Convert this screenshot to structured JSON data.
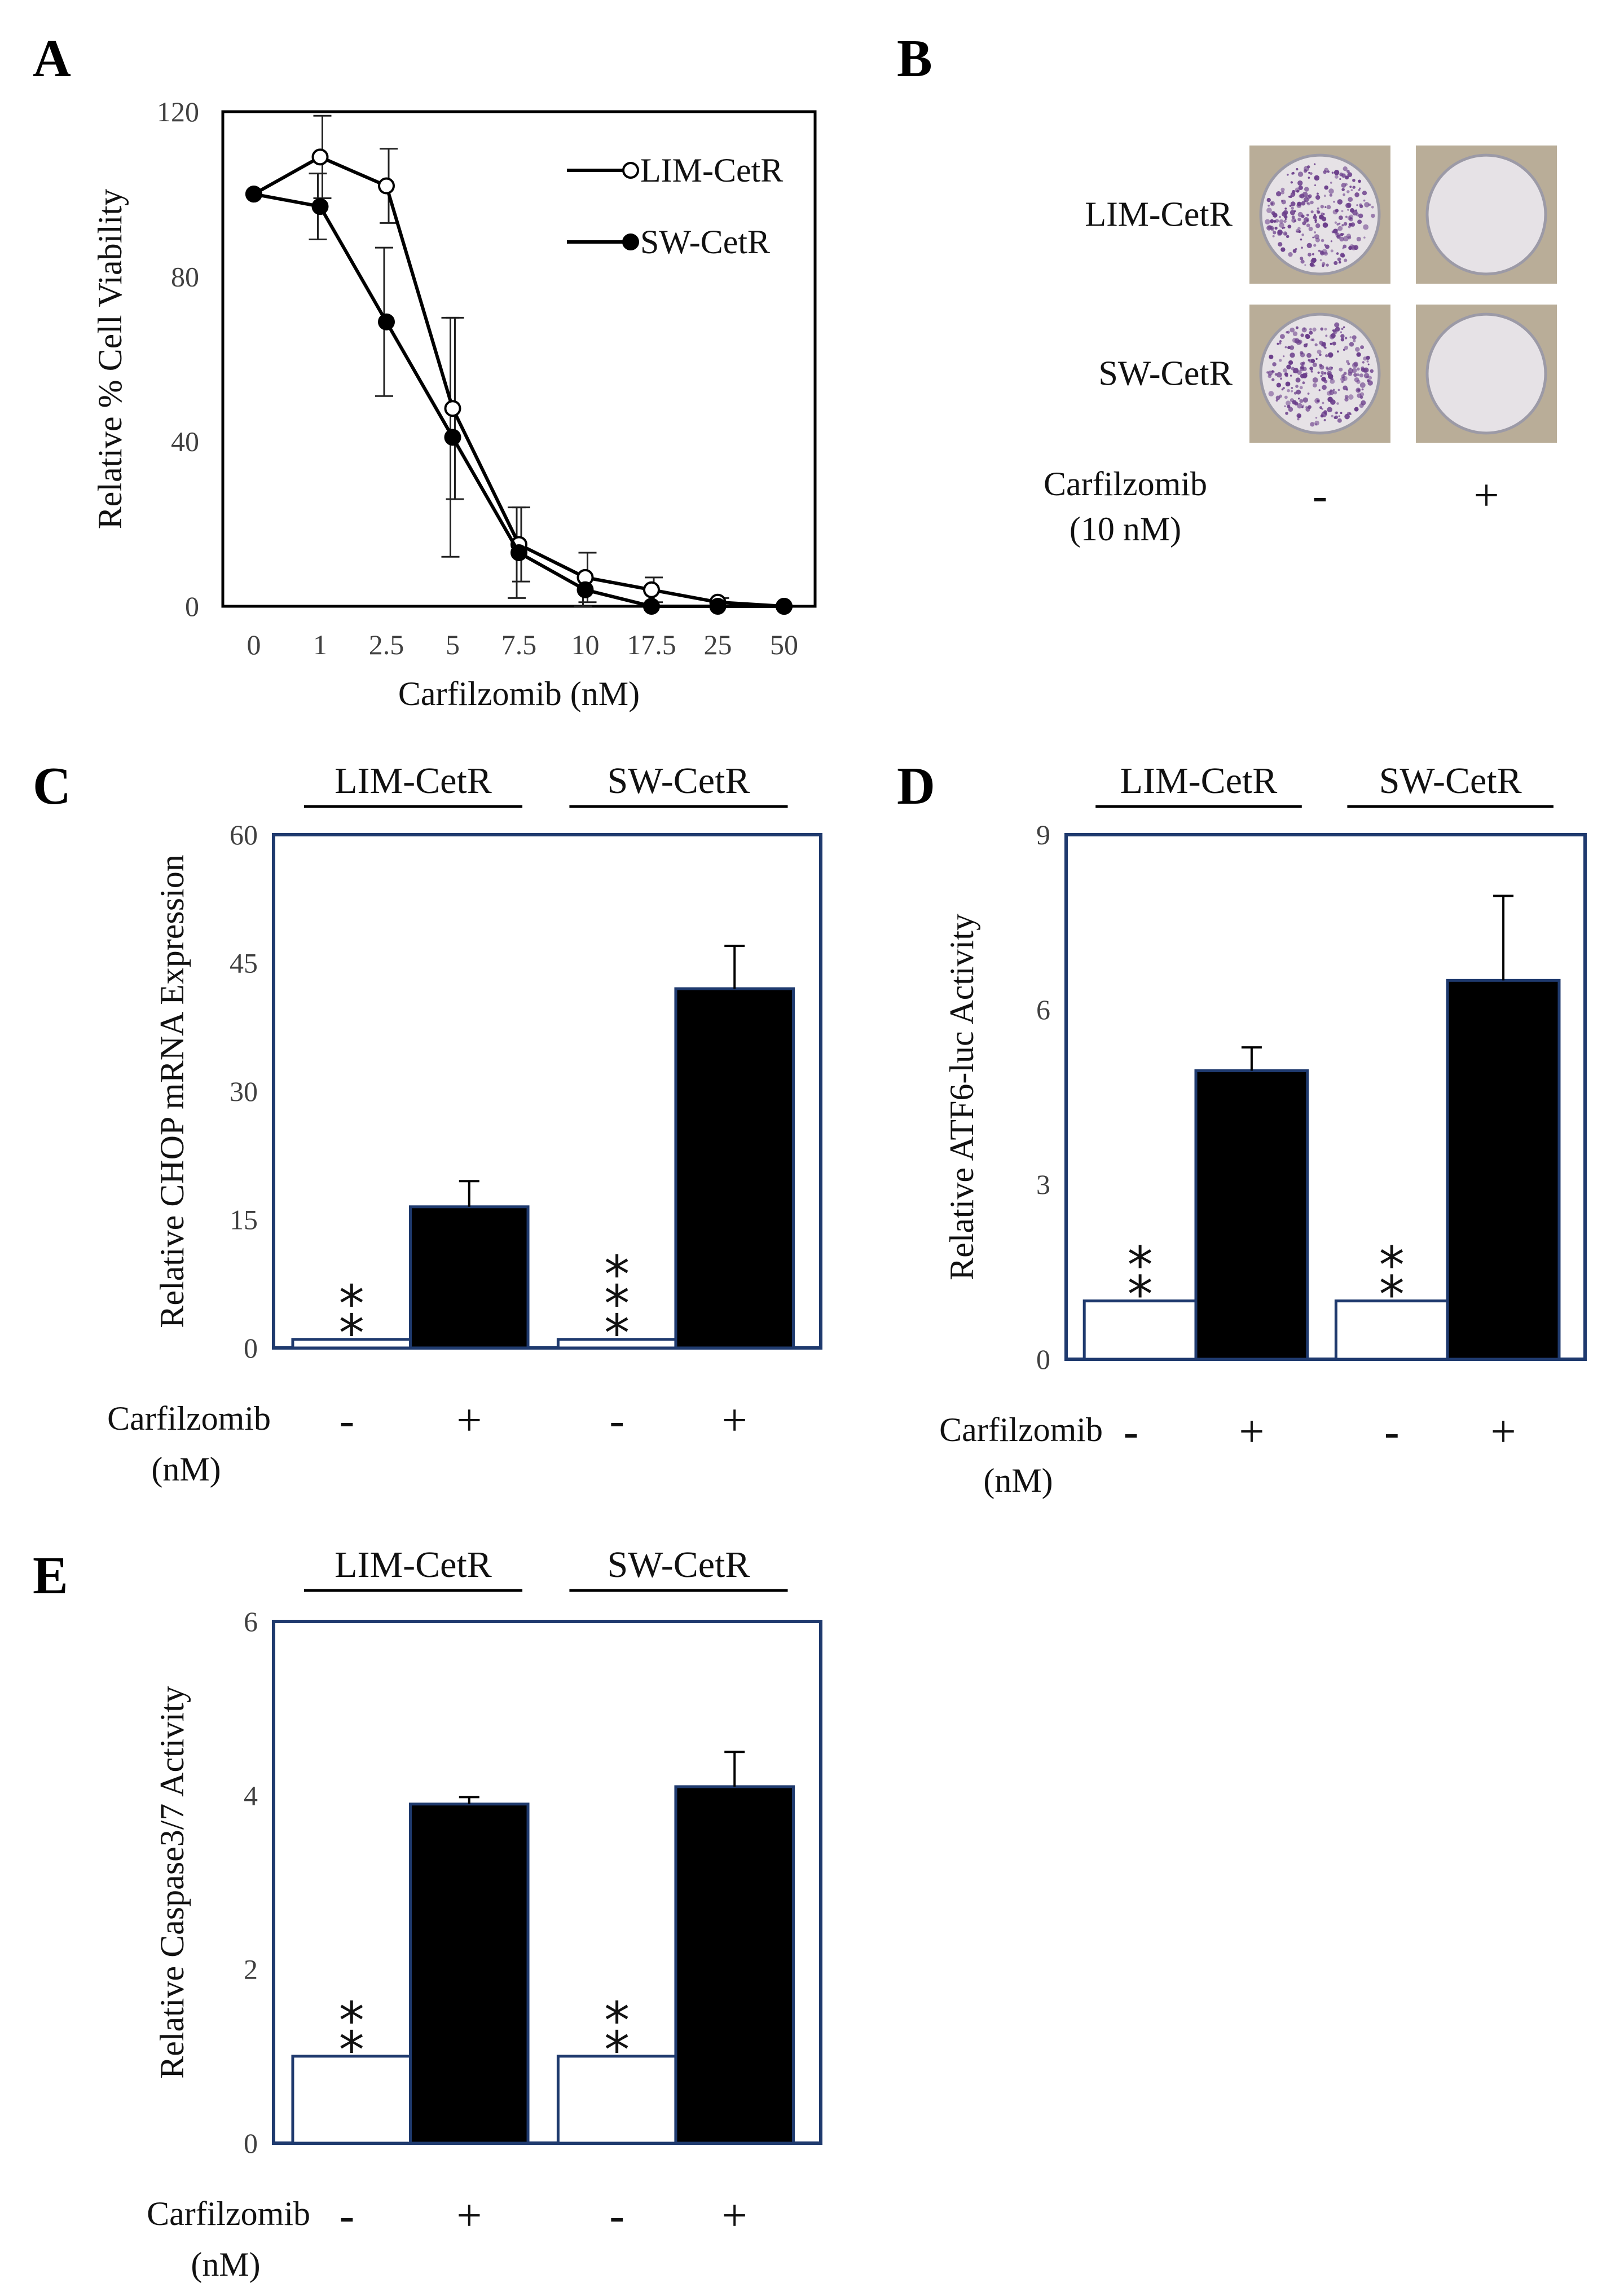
{
  "panels": {
    "A": {
      "letter": "A"
    },
    "B": {
      "letter": "B"
    },
    "C": {
      "letter": "C"
    },
    "D": {
      "letter": "D"
    },
    "E": {
      "letter": "E"
    }
  },
  "chart_data": [
    {
      "panel": "A",
      "type": "line",
      "title": "",
      "xlabel": "Carfilzomib (nM)",
      "ylabel": "Relative % Cell Viability",
      "categories": [
        "0",
        "1",
        "2.5",
        "5",
        "7.5",
        "10",
        "17.5",
        "25",
        "50"
      ],
      "ylim": [
        0,
        120
      ],
      "yticks": [
        "0",
        "40",
        "80",
        "120"
      ],
      "legend_position": "top-right",
      "series": [
        {
          "name": "LIM-CetR",
          "marker": "open-circle",
          "values": [
            100,
            109,
            102,
            48,
            15,
            7,
            4,
            1,
            0
          ],
          "errors": [
            0,
            10,
            9,
            22,
            9,
            6,
            3,
            1,
            0
          ]
        },
        {
          "name": "SW-CetR",
          "marker": "filled-circle",
          "values": [
            100,
            97,
            69,
            41,
            13,
            4,
            0,
            0,
            0
          ],
          "errors": [
            0,
            8,
            18,
            29,
            11,
            4,
            0,
            0,
            0
          ]
        }
      ]
    },
    {
      "panel": "C",
      "type": "bar",
      "ylabel": "Relative  CHOP mRNA Expression",
      "ylim": [
        0,
        60
      ],
      "yticks": [
        "0",
        "15",
        "30",
        "45",
        "60"
      ],
      "groups": [
        "LIM-CetR",
        "SW-CetR"
      ],
      "treatment_label": "Carfilzomib",
      "treatment_unit": "(nM)",
      "treatment_markers": [
        "-",
        "+",
        "-",
        "+"
      ],
      "bars": [
        {
          "group": "LIM-CetR",
          "treatment": "-",
          "value": 1,
          "error": 0,
          "fill": "#ffffff",
          "stars": "**"
        },
        {
          "group": "LIM-CetR",
          "treatment": "+",
          "value": 16.5,
          "error": 3,
          "fill": "#000000",
          "stars": ""
        },
        {
          "group": "SW-CetR",
          "treatment": "-",
          "value": 1,
          "error": 0,
          "fill": "#ffffff",
          "stars": "***"
        },
        {
          "group": "SW-CetR",
          "treatment": "+",
          "value": 42,
          "error": 5,
          "fill": "#000000",
          "stars": ""
        }
      ]
    },
    {
      "panel": "D",
      "type": "bar",
      "ylabel": "Relative  ATF6-luc Activity",
      "ylim": [
        0,
        9
      ],
      "yticks": [
        "0",
        "3",
        "6",
        "9"
      ],
      "groups": [
        "LIM-CetR",
        "SW-CetR"
      ],
      "treatment_label": "Carfilzomib",
      "treatment_unit": "(nM)",
      "treatment_markers": [
        "-",
        "+",
        "-",
        "+"
      ],
      "bars": [
        {
          "group": "LIM-CetR",
          "treatment": "-",
          "value": 1,
          "error": 0,
          "fill": "#ffffff",
          "stars": "**"
        },
        {
          "group": "LIM-CetR",
          "treatment": "+",
          "value": 4.95,
          "error": 0.4,
          "fill": "#000000",
          "stars": ""
        },
        {
          "group": "SW-CetR",
          "treatment": "-",
          "value": 1,
          "error": 0,
          "fill": "#ffffff",
          "stars": "**"
        },
        {
          "group": "SW-CetR",
          "treatment": "+",
          "value": 6.5,
          "error": 1.45,
          "fill": "#000000",
          "stars": ""
        }
      ]
    },
    {
      "panel": "E",
      "type": "bar",
      "ylabel": "Relative  Caspase3/7 Activity",
      "ylim": [
        0,
        6
      ],
      "yticks": [
        "0",
        "2",
        "4",
        "6"
      ],
      "groups": [
        "LIM-CetR",
        "SW-CetR"
      ],
      "treatment_label": "Carfilzomib",
      "treatment_unit": "(nM)",
      "treatment_markers": [
        "-",
        "+",
        "-",
        "+"
      ],
      "bars": [
        {
          "group": "LIM-CetR",
          "treatment": "-",
          "value": 1,
          "error": 0,
          "fill": "#ffffff",
          "stars": "**"
        },
        {
          "group": "LIM-CetR",
          "treatment": "+",
          "value": 3.9,
          "error": 0.08,
          "fill": "#000000",
          "stars": ""
        },
        {
          "group": "SW-CetR",
          "treatment": "-",
          "value": 1,
          "error": 0,
          "fill": "#ffffff",
          "stars": "**"
        },
        {
          "group": "SW-CetR",
          "treatment": "+",
          "value": 4.1,
          "error": 0.4,
          "fill": "#000000",
          "stars": ""
        }
      ]
    }
  ],
  "panel_B": {
    "row_labels": [
      "LIM-CetR",
      "SW-CetR"
    ],
    "treatment_label": "Carfilzomib",
    "treatment_unit": "(10 nM)",
    "treatment_markers": [
      "-",
      "+"
    ],
    "wells": [
      {
        "name": "LIM-CetR untreated",
        "colonies": "dense"
      },
      {
        "name": "LIM-CetR treated",
        "colonies": "none"
      },
      {
        "name": "SW-CetR untreated",
        "colonies": "dense"
      },
      {
        "name": "SW-CetR treated",
        "colonies": "none"
      }
    ]
  },
  "colors": {
    "axis_frame": "#1f3a6e",
    "bar_filled": "#000000",
    "bar_open": "#ffffff",
    "text": "#111111",
    "tick_text": "#404040",
    "well_bg": "#b9ad98",
    "well_inner": "#e6e2e6",
    "stain": "#6a3d8a"
  }
}
